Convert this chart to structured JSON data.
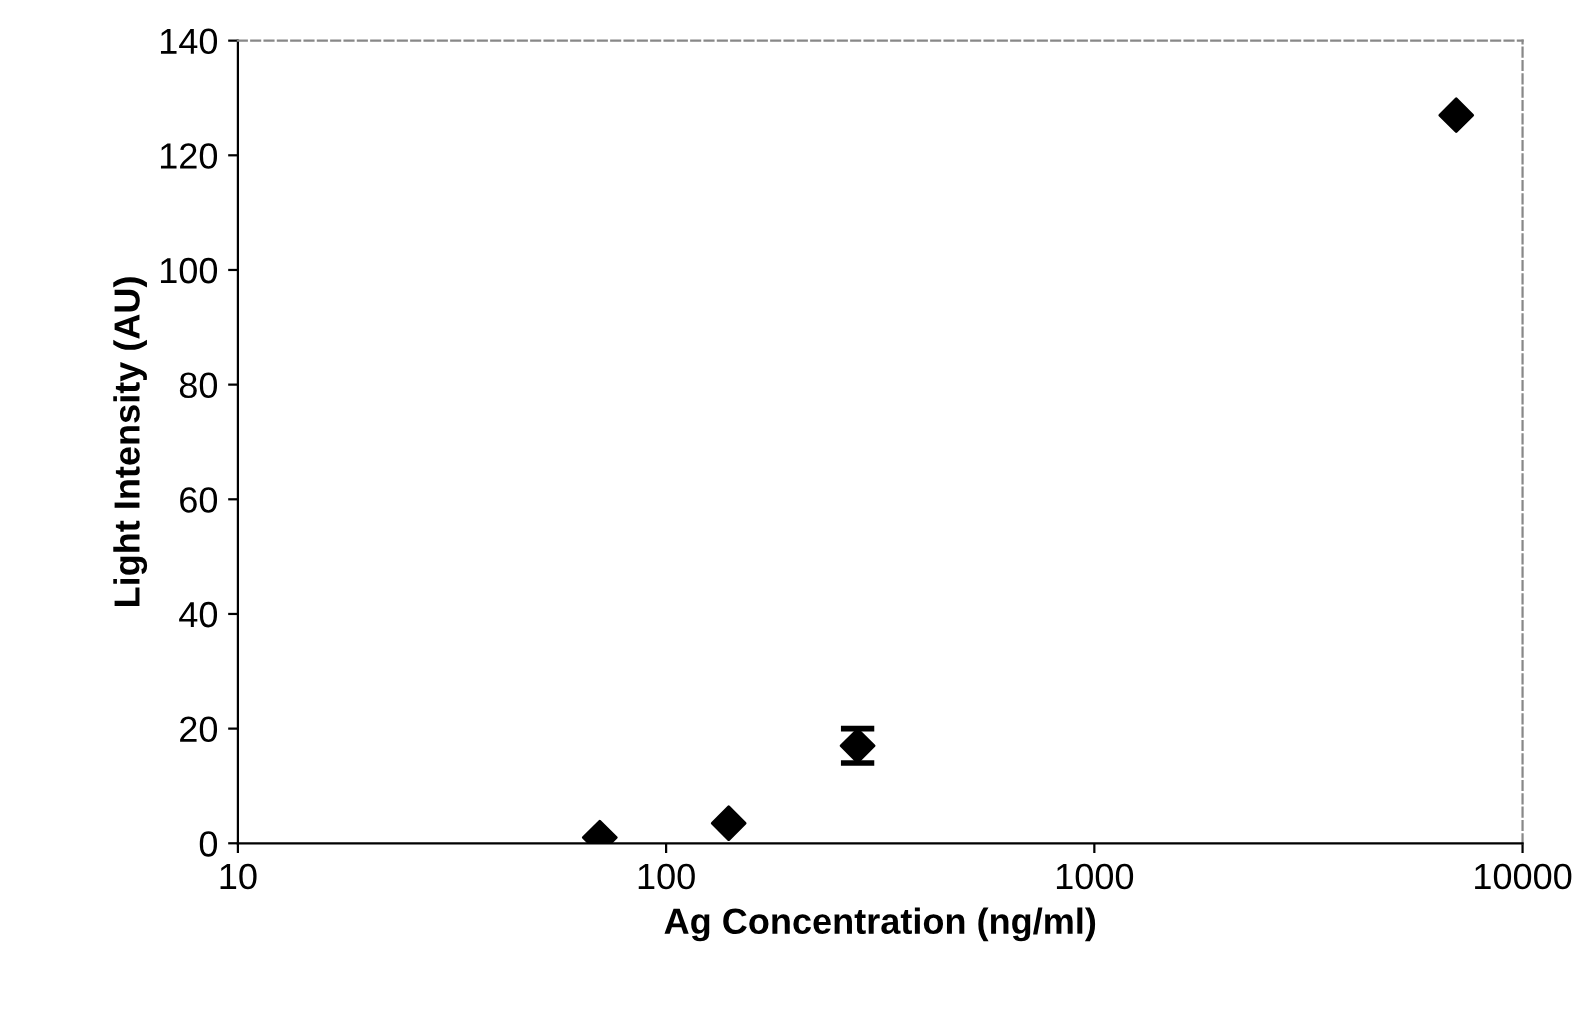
{
  "chart_data": {
    "type": "scatter",
    "xlabel": "Ag Concentration (ng/ml)",
    "ylabel": "Light Intensity (AU)",
    "x": [
      70,
      140,
      280,
      7000
    ],
    "values": [
      1,
      3.5,
      17,
      127
    ],
    "errors": [
      null,
      null,
      3,
      null
    ],
    "color": "#000000",
    "marker": "diamond",
    "log": "x",
    "xlim": [
      10,
      10000
    ],
    "xticks": [
      10,
      100,
      1000,
      10000
    ],
    "ylim": [
      0,
      140
    ],
    "yticks": [
      0,
      20,
      40,
      60,
      80,
      100,
      120,
      140
    ],
    "grid": false
  }
}
